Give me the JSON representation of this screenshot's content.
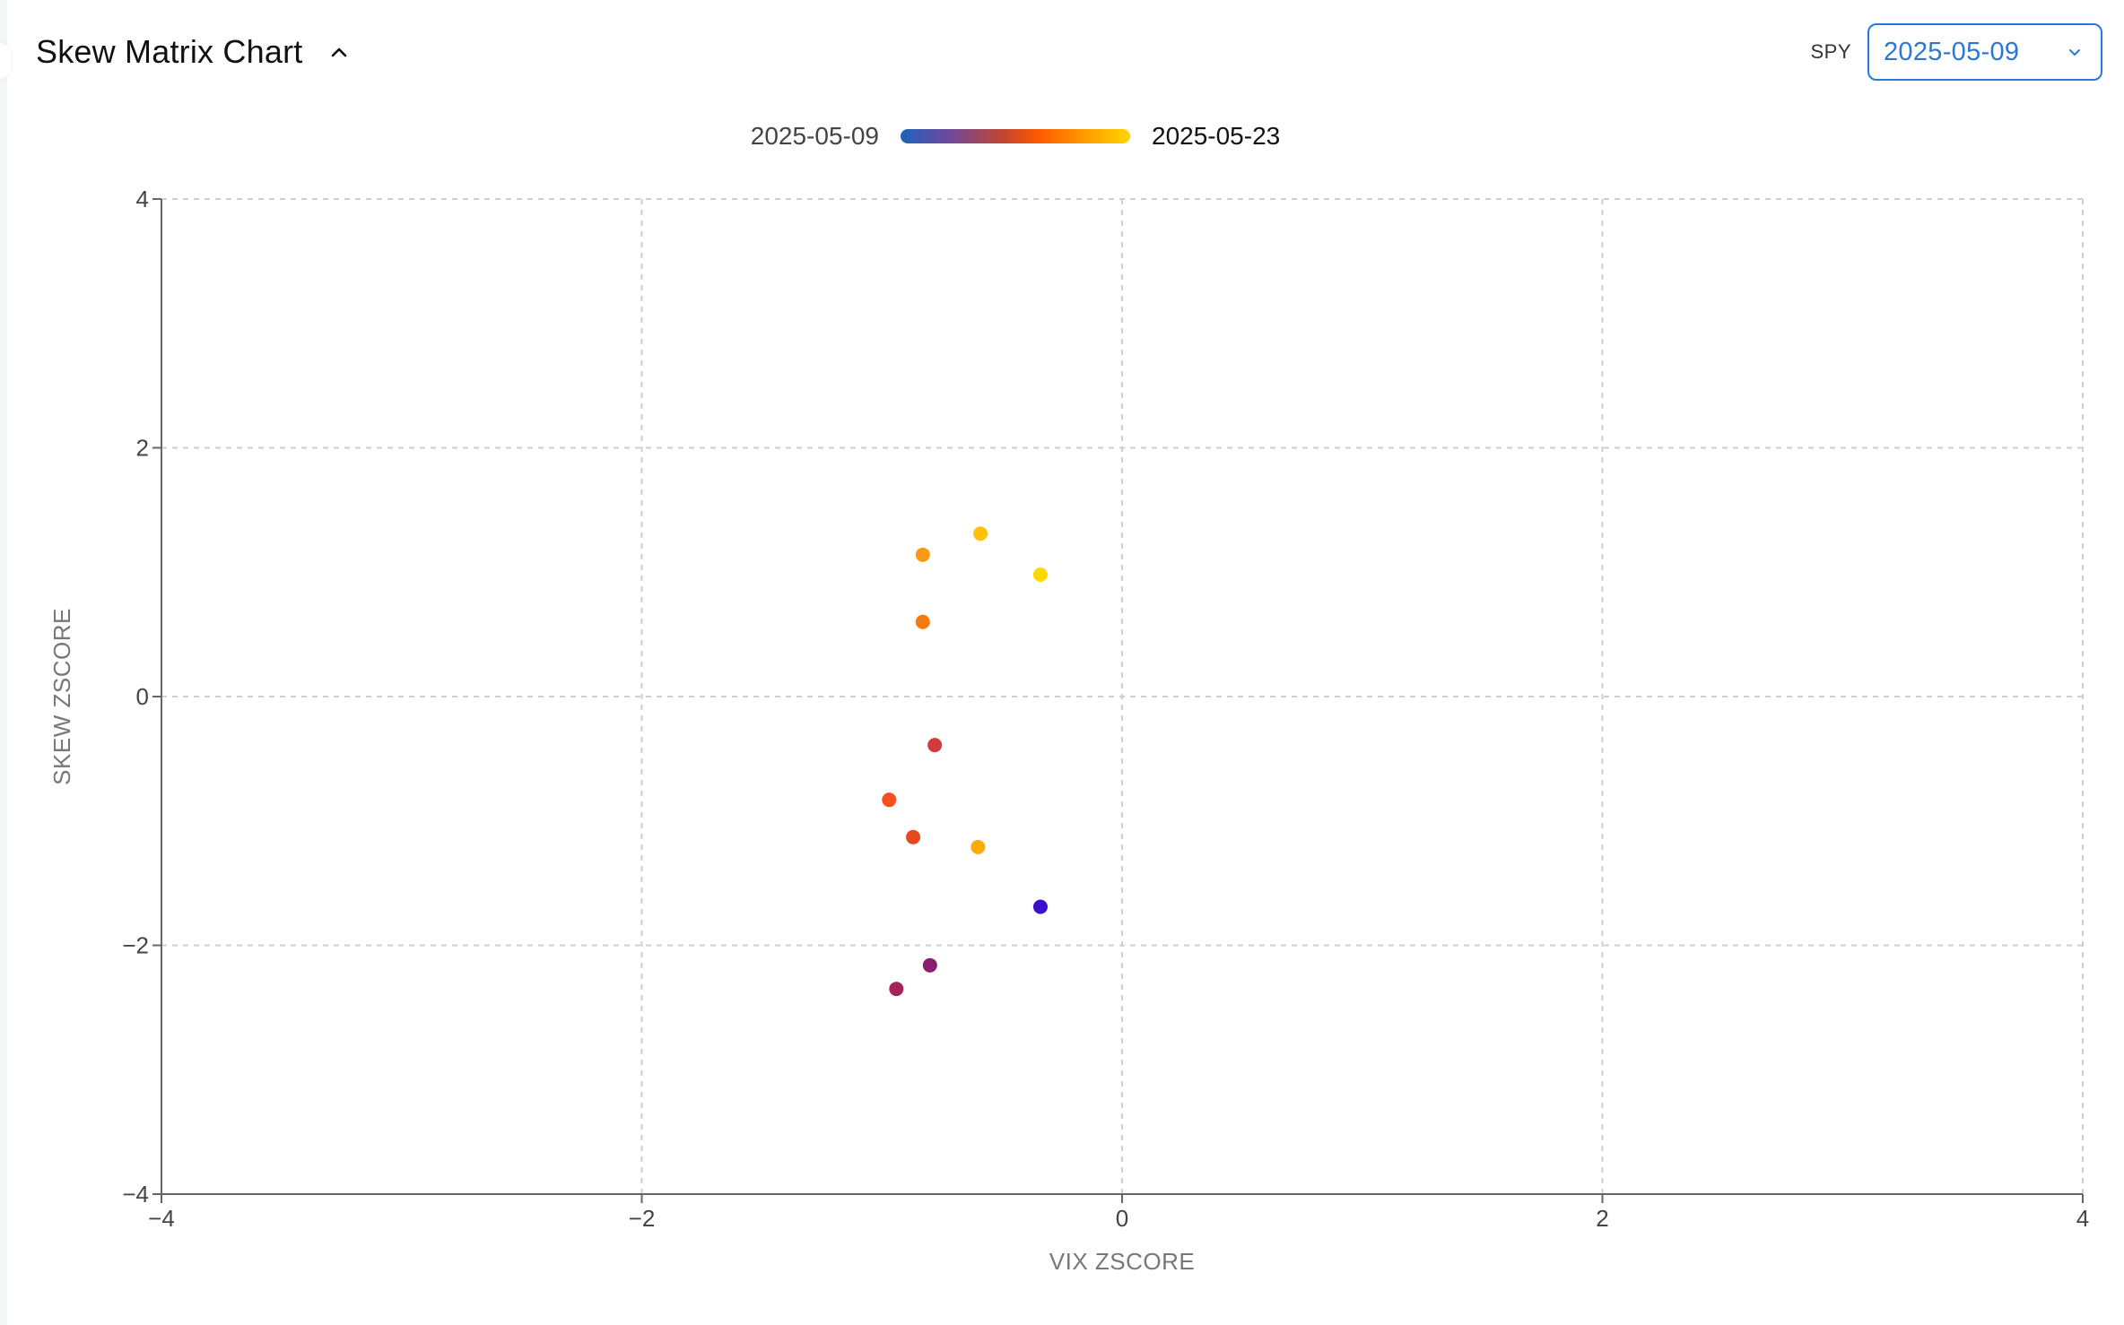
{
  "header": {
    "title": "Skew Matrix Chart"
  },
  "controls": {
    "ticker": "SPY",
    "selected_date": "2025-05-09"
  },
  "legend": {
    "start_label": "2025-05-09",
    "end_label": "2025-05-23",
    "gradient_colors": [
      "#1e63b8",
      "#6b4aa0",
      "#c2452f",
      "#ff5a00",
      "#ff9a00",
      "#ffd600"
    ]
  },
  "chart_data": {
    "type": "scatter",
    "title": "",
    "xlabel": "VIX ZSCORE",
    "ylabel": "SKEW ZSCORE",
    "xlim": [
      -4,
      4
    ],
    "ylim": [
      -4,
      4
    ],
    "xticks": [
      -4,
      -2,
      0,
      2,
      4
    ],
    "yticks": [
      -4,
      -2,
      0,
      2,
      4
    ],
    "grid": true,
    "color_scale": "date, from 2025-05-09 (blue) to 2025-05-23 (yellow)",
    "points": [
      {
        "x": -0.34,
        "y": -1.69,
        "color": "#3a10c8"
      },
      {
        "x": -0.8,
        "y": -2.16,
        "color": "#8a1e6e"
      },
      {
        "x": -0.94,
        "y": -2.35,
        "color": "#a3235a"
      },
      {
        "x": -0.78,
        "y": -0.39,
        "color": "#d43a3a"
      },
      {
        "x": -0.87,
        "y": -1.13,
        "color": "#e8481f"
      },
      {
        "x": -0.97,
        "y": -0.83,
        "color": "#f5501a"
      },
      {
        "x": -0.83,
        "y": 0.6,
        "color": "#f57a10"
      },
      {
        "x": -0.83,
        "y": 1.14,
        "color": "#ff9812"
      },
      {
        "x": -0.6,
        "y": -1.21,
        "color": "#ffaa08"
      },
      {
        "x": -0.59,
        "y": 1.31,
        "color": "#ffc208"
      },
      {
        "x": -0.34,
        "y": 0.98,
        "color": "#ffd800"
      }
    ]
  }
}
